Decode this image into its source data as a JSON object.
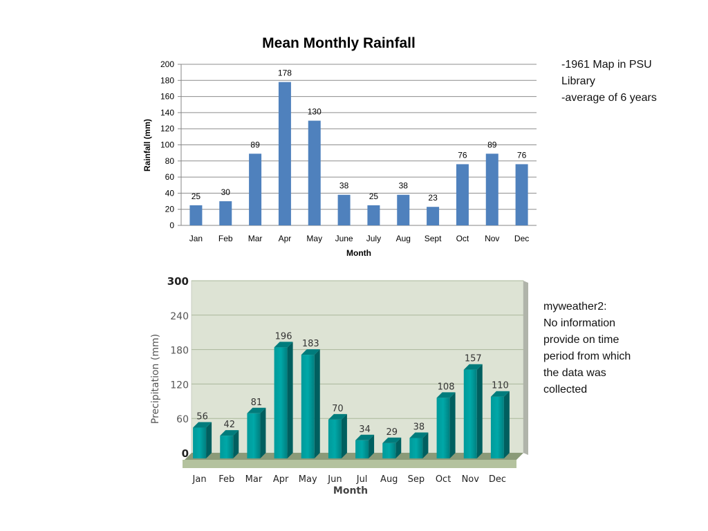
{
  "chart_data": [
    {
      "type": "bar",
      "title": "Mean Monthly Rainfall",
      "xlabel": "Month",
      "ylabel": "Rainfall (mm)",
      "categories": [
        "Jan",
        "Feb",
        "Mar",
        "Apr",
        "May",
        "June",
        "July",
        "Aug",
        "Sept",
        "Oct",
        "Nov",
        "Dec"
      ],
      "values": [
        25,
        30,
        89,
        178,
        130,
        38,
        25,
        38,
        23,
        76,
        89,
        76
      ],
      "ylim": [
        0,
        200
      ],
      "yticks": [
        0,
        20,
        40,
        60,
        80,
        100,
        120,
        140,
        160,
        180,
        200
      ],
      "grid": true,
      "bar_color": "#4f81bd",
      "data_labels": true
    },
    {
      "type": "bar",
      "style": "3d",
      "title": "",
      "xlabel": "Month",
      "ylabel": "Precipitation (mm)",
      "categories": [
        "Jan",
        "Feb",
        "Mar",
        "Apr",
        "May",
        "Jun",
        "Jul",
        "Aug",
        "Sep",
        "Oct",
        "Nov",
        "Dec"
      ],
      "values": [
        56,
        42,
        81,
        196,
        183,
        70,
        34,
        29,
        38,
        108,
        157,
        110
      ],
      "ylim": [
        0,
        300
      ],
      "yticks": [
        0,
        60,
        120,
        180,
        240,
        300
      ],
      "grid": true,
      "bar_color": "#008b8b",
      "background_color": "#dde3d4",
      "data_labels": true
    }
  ],
  "notes": {
    "note1": "-1961 Map in PSU\nLibrary\n-average of 6 years",
    "note2": "myweather2:\nNo  information\nprovide on time\nperiod from which\nthe data was\ncollected"
  }
}
